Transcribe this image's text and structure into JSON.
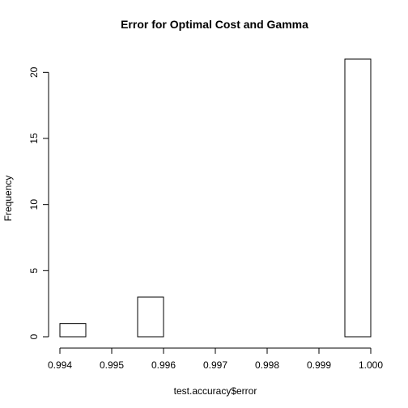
{
  "chart_data": {
    "type": "bar",
    "subtype": "histogram",
    "title": "Error for Optimal Cost and Gamma",
    "xlabel": "test.accuracy$error",
    "ylabel": "Frequency",
    "bin_edges": [
      0.994,
      0.9945,
      0.995,
      0.9955,
      0.996,
      0.9965,
      0.997,
      0.9975,
      0.998,
      0.9985,
      0.999,
      0.9995,
      1.0
    ],
    "values": [
      1,
      0,
      0,
      3,
      0,
      0,
      0,
      0,
      0,
      0,
      0,
      21
    ],
    "xlim": [
      0.994,
      1.0
    ],
    "ylim": [
      0,
      21
    ],
    "x_ticks": [
      0.994,
      0.995,
      0.996,
      0.997,
      0.998,
      0.999,
      1.0
    ],
    "x_tick_labels": [
      "0.994",
      "0.995",
      "0.996",
      "0.997",
      "0.998",
      "0.999",
      "1.000"
    ],
    "y_ticks": [
      0,
      5,
      10,
      15,
      20
    ],
    "y_tick_labels": [
      "0",
      "5",
      "10",
      "15",
      "20"
    ],
    "grid": false,
    "colors": {
      "bar_fill": "#ffffff",
      "bar_stroke": "#000000"
    }
  }
}
